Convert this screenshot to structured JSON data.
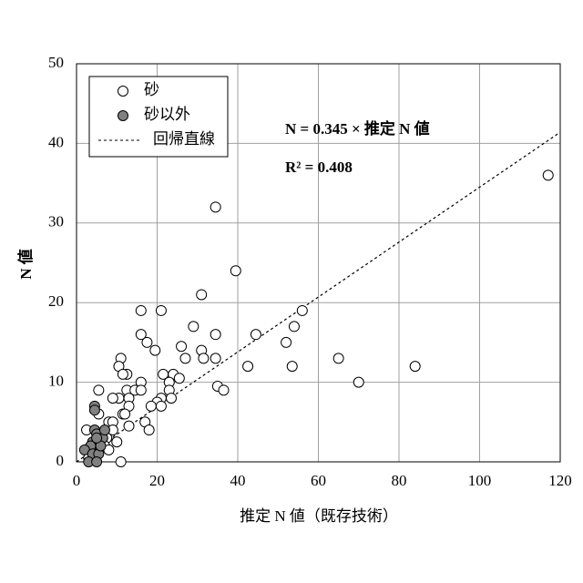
{
  "chart_data": {
    "type": "scatter",
    "xlabel": "推定 N 値（既存技術）",
    "ylabel": "N 値",
    "xlim": [
      0,
      120
    ],
    "xticks": [
      0,
      20,
      40,
      60,
      80,
      100,
      120
    ],
    "ylim": [
      0,
      50
    ],
    "yticks": [
      0,
      10,
      20,
      30,
      40,
      50
    ],
    "grid": true,
    "legend": "upper left",
    "series": [
      {
        "name": "砂",
        "color": "#ffffff",
        "x": [
          117,
          34.5,
          39.5,
          31,
          21,
          16,
          56,
          54,
          29,
          44.5,
          34.5,
          16,
          52,
          17.5,
          26,
          31,
          19.5,
          11,
          27,
          34.5,
          31.5,
          65,
          84,
          53.5,
          42.5,
          10.5,
          12.5,
          21.5,
          24,
          11.5,
          25.5,
          16,
          23,
          70,
          35,
          36.5,
          12.5,
          14.5,
          16,
          23,
          5.5,
          10.5,
          13,
          9,
          21,
          23.5,
          20,
          13,
          18.5,
          21,
          11.5,
          12,
          5.5,
          17,
          8,
          9,
          13,
          18,
          9,
          2.5,
          6,
          7.5,
          10,
          7,
          8,
          11,
          4,
          3,
          5
        ],
        "values": [
          36,
          32,
          24,
          21,
          19,
          19,
          19,
          17,
          17,
          16,
          16,
          16,
          15,
          15,
          14.5,
          14,
          14,
          13,
          13,
          13,
          13,
          13,
          12,
          12,
          12,
          12,
          11,
          11,
          11,
          11,
          10.5,
          10,
          10,
          10,
          9.5,
          9,
          9,
          9,
          9,
          9,
          9,
          8,
          8,
          8,
          8,
          8,
          7.5,
          7,
          7,
          7,
          6,
          6,
          6,
          5,
          5,
          5,
          4.5,
          4,
          4,
          4,
          3.5,
          3,
          2.5,
          2,
          1.5,
          0,
          1.5,
          0.5,
          1
        ]
      },
      {
        "name": "砂以外",
        "color": "#808080",
        "x": [
          4.5,
          4.5,
          4.5,
          5,
          6.5,
          4,
          3.5,
          2,
          4,
          5.5,
          3,
          5,
          6,
          5,
          7
        ],
        "values": [
          7,
          6.5,
          4,
          3.5,
          3,
          2.5,
          2,
          1.5,
          1,
          1,
          0,
          0,
          2,
          3,
          4
        ]
      }
    ],
    "fit": {
      "name": "回帰直線",
      "label_prefix": "N = ",
      "slope": 0.345,
      "label_suffix": " × 推定 N 値",
      "r2_prefix": "R² = ",
      "r2": 0.408
    }
  }
}
